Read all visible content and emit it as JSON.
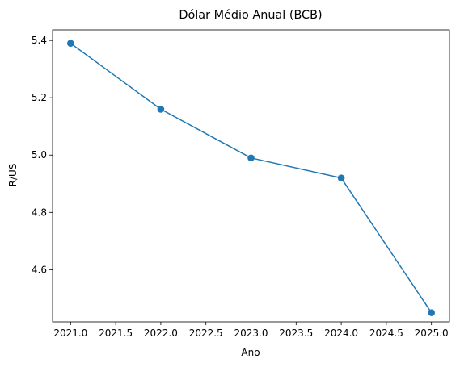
{
  "chart_data": {
    "type": "line",
    "title": "Dólar Médio Anual (BCB)",
    "xlabel": "Ano",
    "ylabel": "R/US",
    "x": [
      2021.0,
      2022.0,
      2023.0,
      2024.0,
      2025.0
    ],
    "series": [
      {
        "values": [
          5.39,
          5.16,
          4.99,
          4.92,
          4.45
        ],
        "color": "#1f77b4",
        "marker": "circle"
      }
    ],
    "xlim": [
      2020.8,
      2025.2
    ],
    "ylim": [
      4.418,
      5.437
    ],
    "xticks": [
      2021.0,
      2021.5,
      2022.0,
      2022.5,
      2023.0,
      2023.5,
      2024.0,
      2024.5,
      2025.0
    ],
    "xtick_labels": [
      "2021.0",
      "2021.5",
      "2022.0",
      "2022.5",
      "2023.0",
      "2023.5",
      "2024.0",
      "2024.5",
      "2025.0"
    ],
    "yticks": [
      4.6,
      4.8,
      5.0,
      5.2,
      5.4
    ],
    "ytick_labels": [
      "4.6",
      "4.8",
      "5.0",
      "5.2",
      "5.4"
    ],
    "grid": false,
    "legend": "none"
  }
}
